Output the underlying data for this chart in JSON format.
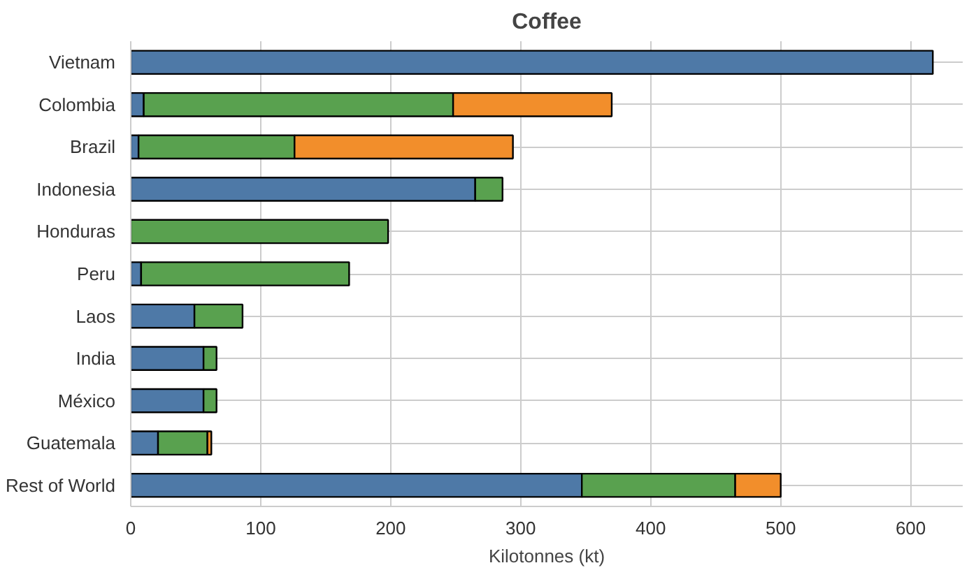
{
  "chart_data": {
    "type": "bar",
    "title": "Coffee",
    "xlabel": "Kilotonnes (kt)",
    "orientation": "horizontal",
    "stacked": true,
    "categories": [
      "Vietnam",
      "Colombia",
      "Brazil",
      "Indonesia",
      "Honduras",
      "Peru",
      "Laos",
      "India",
      "México",
      "Guatemala",
      "Rest of World"
    ],
    "series": [
      {
        "color": "#4e79a7",
        "values": [
          617,
          10,
          6,
          265,
          0,
          8,
          49,
          56,
          56,
          21,
          347
        ]
      },
      {
        "color": "#59a14f",
        "values": [
          0,
          238,
          120,
          21,
          198,
          160,
          37,
          10,
          10,
          38,
          118
        ]
      },
      {
        "color": "#f28e2b",
        "values": [
          0,
          122,
          168,
          0,
          0,
          0,
          0,
          0,
          0,
          3,
          35
        ]
      }
    ],
    "xlim": [
      0,
      640
    ],
    "xticks": [
      0,
      100,
      200,
      300,
      400,
      500,
      600
    ],
    "grid": true
  }
}
